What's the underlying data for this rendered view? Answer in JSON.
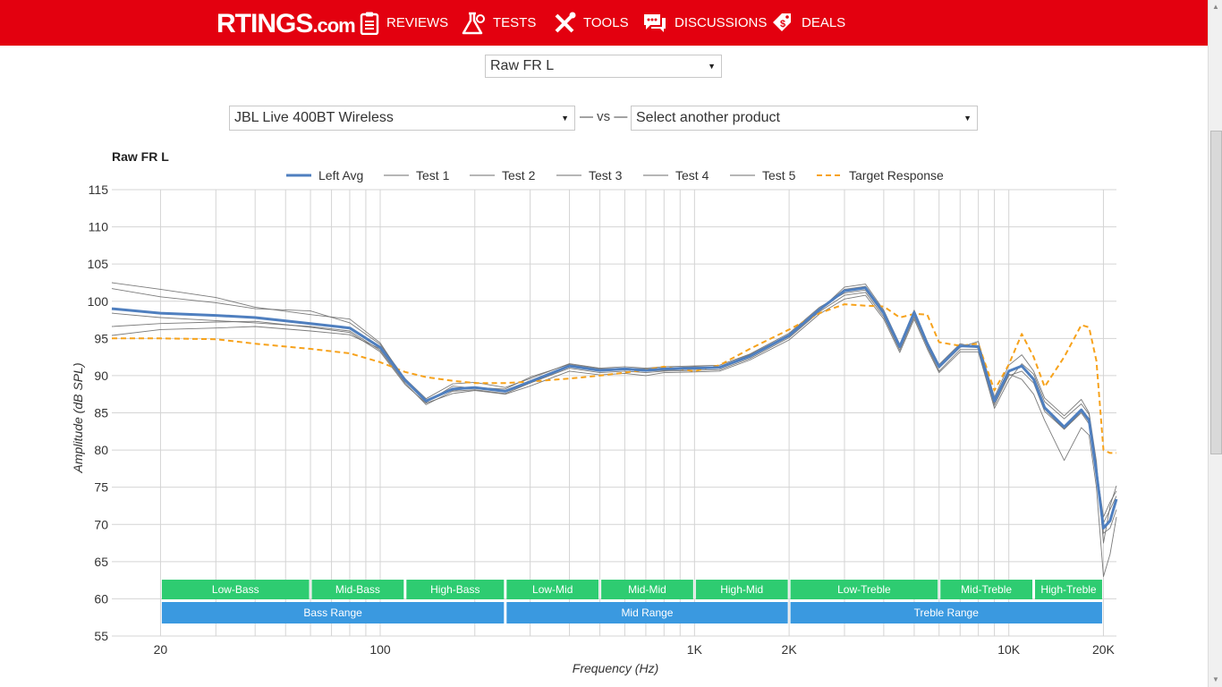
{
  "site": {
    "logo": "RTINGS",
    "logo_suffix": ".com",
    "nav": [
      {
        "label": "Reviews",
        "icon": "clipboard-icon"
      },
      {
        "label": "Tests",
        "icon": "flask-icon"
      },
      {
        "label": "Tools",
        "icon": "tools-icon"
      },
      {
        "label": "Discussions",
        "icon": "chat-icon"
      },
      {
        "label": "Deals",
        "icon": "price-tag-icon"
      }
    ]
  },
  "controls": {
    "graph_type": "Raw FR L",
    "product": "JBL Live 400BT Wireless",
    "vs_label": "— vs —",
    "compare_placeholder": "Select another product"
  },
  "colors": {
    "brand": "#e3000f",
    "left_avg": "#4f7fbf",
    "tests": "#6d6d6d",
    "target": "#f7a21b",
    "band_green": "#2ecc71",
    "band_blue": "#3a99e0"
  },
  "chart_data": {
    "type": "line",
    "title": "Raw FR L",
    "xlabel": "Frequency (Hz)",
    "ylabel": "Amplitude (dB SPL)",
    "x_scale": "log",
    "xlim": [
      14,
      22000
    ],
    "ylim": [
      55,
      115
    ],
    "y_ticks": [
      55,
      60,
      65,
      70,
      75,
      80,
      85,
      90,
      95,
      100,
      105,
      110,
      115
    ],
    "x_tick_labels": [
      {
        "value": 20,
        "label": "20"
      },
      {
        "value": 100,
        "label": "100"
      },
      {
        "value": 1000,
        "label": "1K"
      },
      {
        "value": 2000,
        "label": "2K"
      },
      {
        "value": 10000,
        "label": "10K"
      },
      {
        "value": 20000,
        "label": "20K"
      }
    ],
    "grid": true,
    "legend_position": "top-center",
    "x": [
      14,
      20,
      30,
      40,
      60,
      80,
      100,
      120,
      140,
      170,
      200,
      250,
      300,
      400,
      500,
      600,
      700,
      800,
      1000,
      1200,
      1500,
      2000,
      2500,
      3000,
      3500,
      4000,
      4500,
      5000,
      5500,
      6000,
      7000,
      8000,
      9000,
      10000,
      11000,
      12000,
      13000,
      15000,
      17000,
      18000,
      19000,
      20000,
      21000,
      22000
    ],
    "series": [
      {
        "name": "Left Avg",
        "values": [
          99.0,
          98.4,
          98.1,
          97.8,
          97.0,
          96.4,
          93.8,
          89.4,
          86.6,
          88.2,
          88.4,
          87.9,
          89.2,
          91.3,
          90.7,
          90.9,
          90.7,
          90.9,
          91.0,
          91.1,
          92.6,
          95.4,
          98.9,
          101.4,
          101.8,
          98.4,
          93.9,
          98.5,
          94.3,
          91.2,
          94.0,
          93.9,
          86.6,
          90.6,
          91.3,
          89.5,
          85.7,
          83.1,
          85.4,
          84.0,
          77.0,
          69.5,
          70.5,
          73.4
        ]
      },
      {
        "name": "Test 1",
        "values": [
          102.5,
          101.6,
          100.5,
          99.2,
          98.2,
          97.6,
          94.4,
          89.3,
          86.4,
          88.6,
          88.3,
          87.8,
          89.0,
          91.2,
          90.6,
          90.8,
          90.6,
          90.7,
          90.9,
          91.0,
          92.5,
          95.3,
          98.8,
          101.9,
          102.3,
          98.8,
          94.2,
          98.8,
          94.6,
          91.5,
          94.3,
          93.7,
          86.3,
          90.2,
          89.5,
          87.5,
          84.0,
          78.6,
          83.0,
          82.0,
          75.0,
          63.0,
          66.0,
          71.0
        ]
      },
      {
        "name": "Test 2",
        "values": [
          101.7,
          100.6,
          99.8,
          99.0,
          98.7,
          97.1,
          94.2,
          89.6,
          86.9,
          88.9,
          89.1,
          88.4,
          89.6,
          91.6,
          91.0,
          91.2,
          91.0,
          91.2,
          91.3,
          91.4,
          92.9,
          95.7,
          99.2,
          101.1,
          101.5,
          98.2,
          93.7,
          98.3,
          94.1,
          91.0,
          93.8,
          94.6,
          87.1,
          91.4,
          92.8,
          90.6,
          87.0,
          84.6,
          86.8,
          85.0,
          78.5,
          67.5,
          72.5,
          75.2
        ]
      },
      {
        "name": "Test 3",
        "values": [
          98.4,
          97.8,
          97.4,
          97.1,
          96.6,
          96.0,
          93.4,
          89.0,
          86.1,
          87.9,
          88.1,
          87.6,
          89.0,
          91.0,
          90.4,
          90.6,
          90.4,
          90.6,
          90.7,
          90.8,
          92.3,
          95.1,
          98.6,
          100.8,
          101.2,
          97.9,
          93.4,
          97.9,
          93.9,
          90.6,
          93.5,
          93.5,
          86.0,
          90.0,
          90.6,
          89.0,
          85.2,
          82.8,
          85.0,
          83.5,
          77.5,
          71.0,
          73.0,
          74.5
        ]
      },
      {
        "name": "Test 4",
        "values": [
          96.6,
          97.0,
          97.2,
          97.3,
          96.5,
          95.8,
          93.2,
          88.8,
          86.3,
          87.6,
          88.0,
          87.5,
          88.6,
          90.6,
          90.1,
          90.3,
          90.0,
          90.4,
          90.5,
          90.6,
          92.1,
          94.8,
          98.3,
          100.3,
          100.8,
          97.6,
          93.1,
          97.6,
          93.6,
          90.4,
          93.2,
          93.2,
          85.6,
          89.4,
          91.6,
          90.2,
          86.5,
          84.2,
          86.2,
          84.8,
          77.8,
          70.2,
          72.0,
          73.8
        ]
      },
      {
        "name": "Test 5",
        "values": [
          95.4,
          96.2,
          96.4,
          96.6,
          96.0,
          95.5,
          93.6,
          89.2,
          86.7,
          88.0,
          88.4,
          88.2,
          89.8,
          91.5,
          90.9,
          91.0,
          90.9,
          91.0,
          91.2,
          91.2,
          92.8,
          95.5,
          99.0,
          101.6,
          102.0,
          98.6,
          94.0,
          98.6,
          94.4,
          91.3,
          94.1,
          93.8,
          86.8,
          90.5,
          91.2,
          89.4,
          85.5,
          82.8,
          85.2,
          83.8,
          76.8,
          68.8,
          69.5,
          72.0
        ]
      },
      {
        "name": "Target Response",
        "values": [
          95.0,
          95.0,
          94.9,
          94.3,
          93.6,
          93.0,
          91.8,
          90.5,
          89.8,
          89.3,
          89.0,
          89.0,
          89.2,
          89.6,
          90.0,
          90.4,
          90.8,
          91.2,
          90.6,
          91.4,
          93.6,
          96.2,
          98.4,
          99.6,
          99.4,
          99.3,
          97.8,
          98.3,
          98.2,
          94.5,
          94.0,
          94.3,
          88.0,
          91.5,
          95.6,
          92.5,
          88.5,
          92.5,
          96.8,
          96.5,
          92.0,
          80.0,
          79.6,
          79.6
        ]
      }
    ],
    "bands_top": [
      {
        "label": "Low-Bass",
        "from": 20,
        "to": 60
      },
      {
        "label": "Mid-Bass",
        "from": 60,
        "to": 120
      },
      {
        "label": "High-Bass",
        "from": 120,
        "to": 250
      },
      {
        "label": "Low-Mid",
        "from": 250,
        "to": 500
      },
      {
        "label": "Mid-Mid",
        "from": 500,
        "to": 1000
      },
      {
        "label": "High-Mid",
        "from": 1000,
        "to": 2000
      },
      {
        "label": "Low-Treble",
        "from": 2000,
        "to": 6000
      },
      {
        "label": "Mid-Treble",
        "from": 6000,
        "to": 12000
      },
      {
        "label": "High-Treble",
        "from": 12000,
        "to": 20000
      }
    ],
    "bands_bottom": [
      {
        "label": "Bass Range",
        "from": 20,
        "to": 250
      },
      {
        "label": "Mid Range",
        "from": 250,
        "to": 2000
      },
      {
        "label": "Treble Range",
        "from": 2000,
        "to": 20000
      }
    ]
  }
}
